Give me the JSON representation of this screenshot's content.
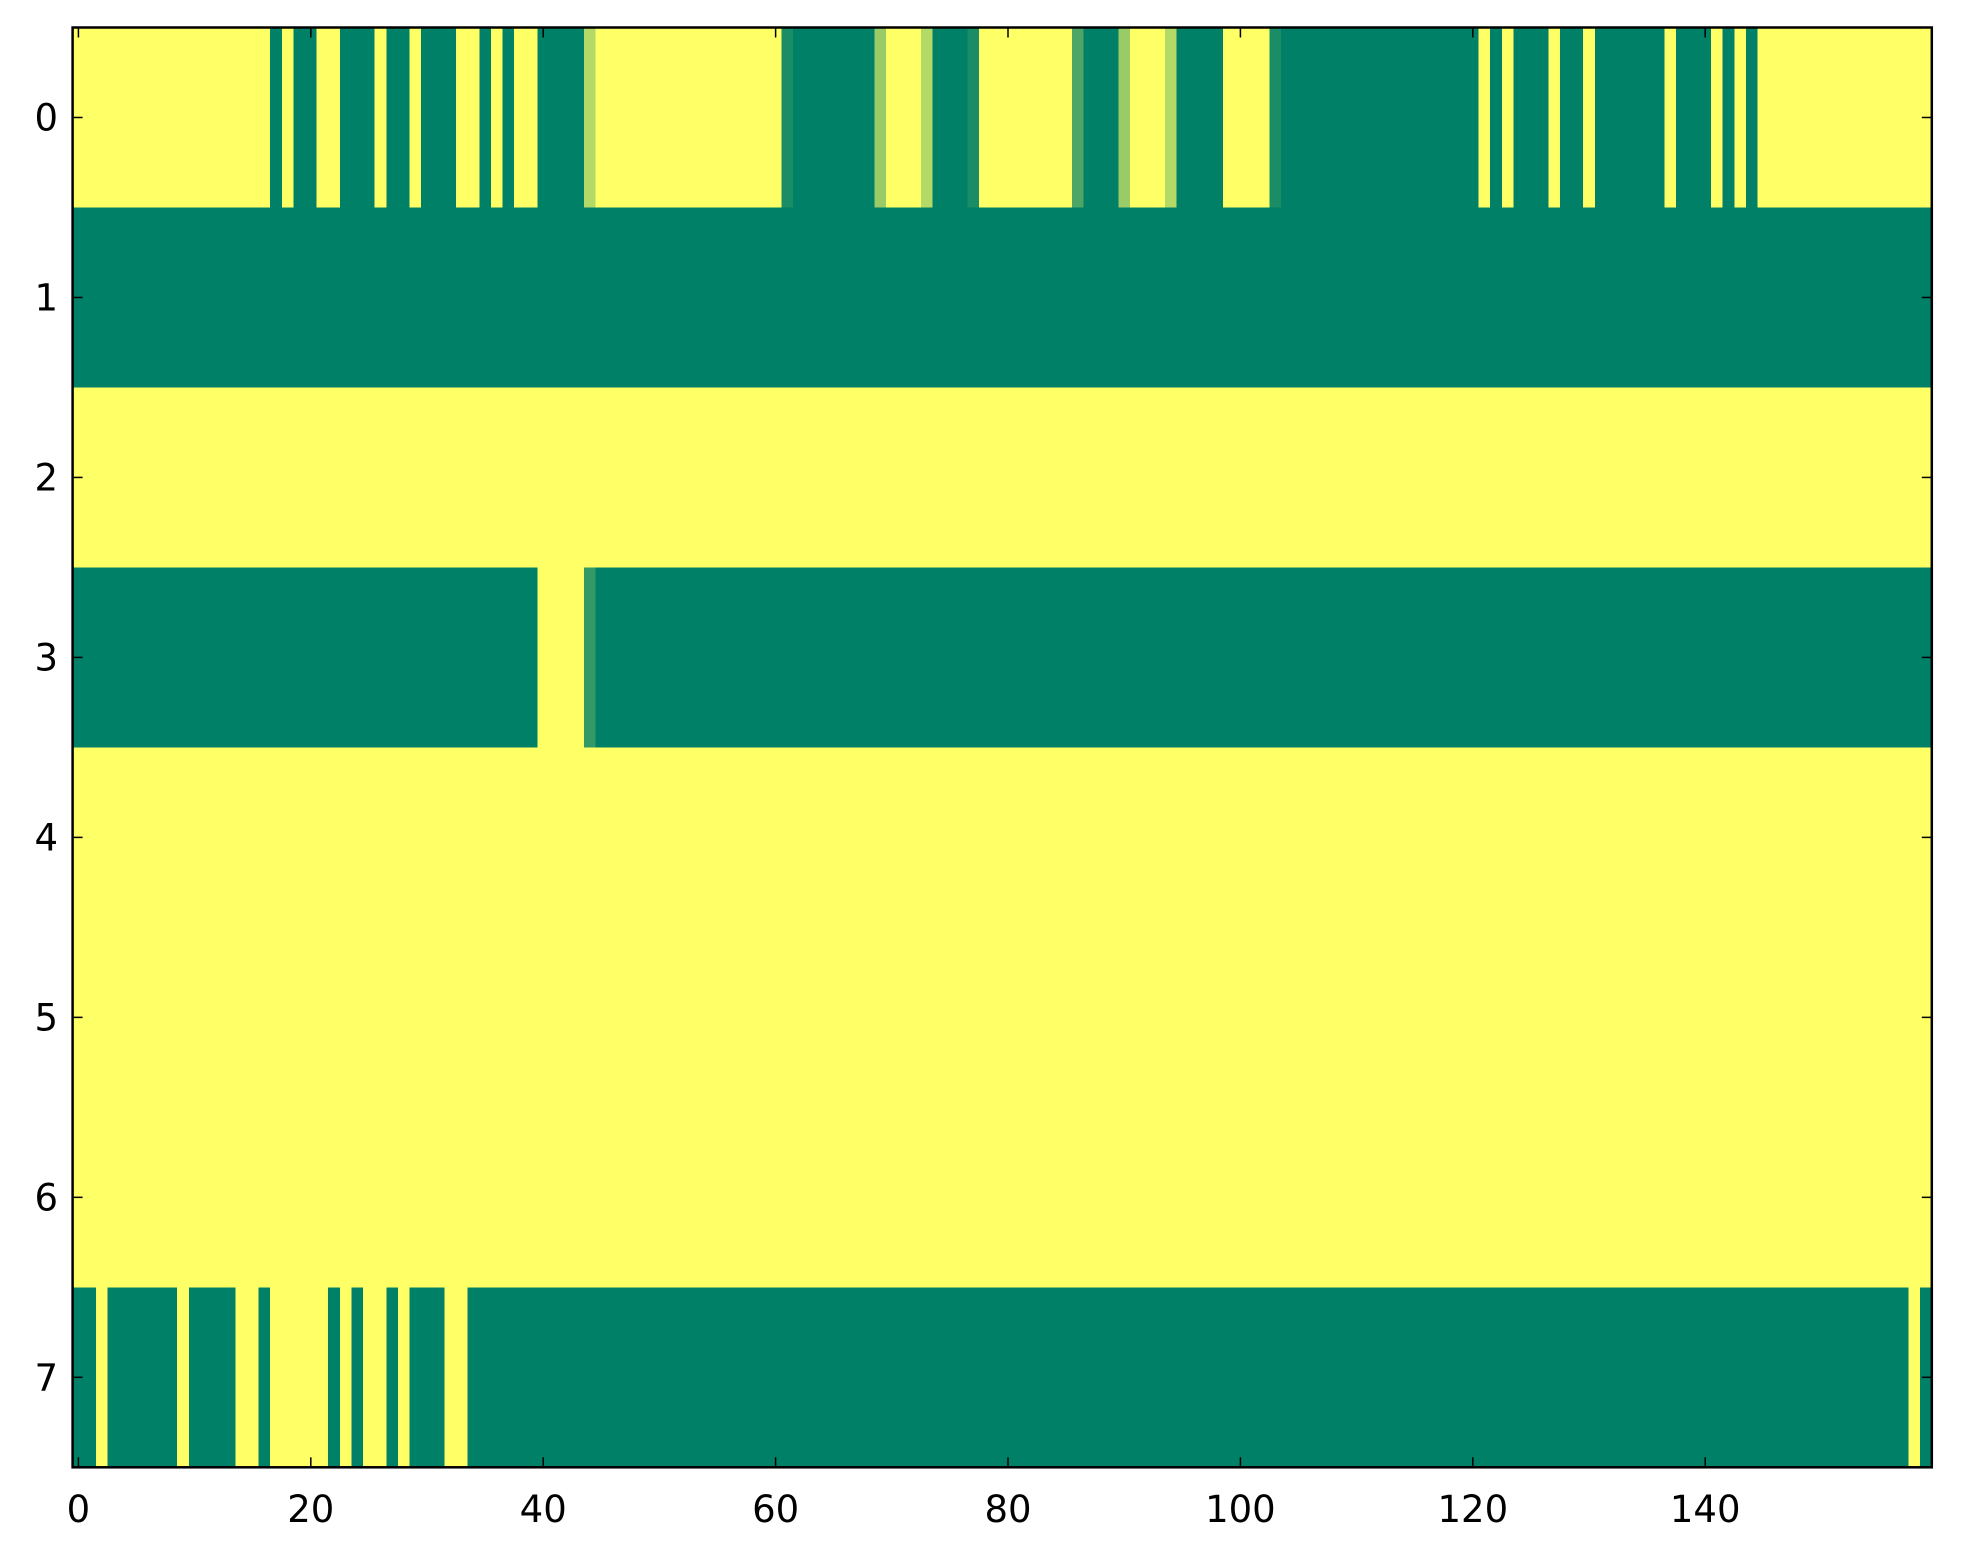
{
  "chart_data": {
    "type": "heatmap",
    "colormap": [
      "#008066",
      "#ffff66"
    ],
    "xlim": [
      -0.5,
      159.5
    ],
    "ylim": [
      7.5,
      -0.5
    ],
    "xticks": [
      0,
      20,
      40,
      60,
      80,
      100,
      120,
      140
    ],
    "yticks": [
      0,
      1,
      2,
      3,
      4,
      5,
      6,
      7
    ],
    "z": [
      [
        1,
        1,
        1,
        1,
        1,
        1,
        1,
        1,
        1,
        1,
        1,
        1,
        1,
        1,
        1,
        1,
        1,
        0,
        1,
        0,
        0,
        1,
        1,
        0,
        0,
        0,
        1,
        0,
        0,
        1,
        0,
        0,
        0,
        1,
        1,
        0,
        1,
        0,
        1,
        1,
        0,
        0,
        0,
        0,
        0.7,
        1,
        1,
        1,
        1,
        1,
        1,
        1,
        1,
        1,
        1,
        1,
        1,
        1,
        1,
        1,
        1,
        0.1,
        0,
        0,
        0,
        0,
        0,
        0,
        0,
        0.6,
        1,
        1,
        1,
        0.7,
        0,
        0,
        0,
        0.1,
        1,
        1,
        1,
        1,
        1,
        1,
        1,
        1,
        0.3,
        0,
        0,
        0,
        0.6,
        1,
        1,
        1,
        0.7,
        0,
        0,
        0,
        0,
        1,
        1,
        1,
        1,
        0.1,
        0,
        0,
        0,
        0,
        0,
        0,
        0,
        0,
        0,
        0,
        0,
        0,
        0,
        0,
        0,
        0,
        0,
        1,
        0,
        1,
        0,
        0,
        0,
        1,
        0,
        0,
        1,
        0,
        0,
        0,
        0,
        0,
        0,
        1,
        0,
        0,
        0,
        1,
        0,
        1,
        0,
        1,
        1,
        1,
        1,
        1,
        1,
        1,
        1,
        1,
        1,
        1,
        1,
        1,
        1,
        1
      ],
      [
        0,
        0,
        0,
        0,
        0,
        0,
        0,
        0,
        0,
        0,
        0,
        0,
        0,
        0,
        0,
        0,
        0,
        0,
        0,
        0,
        0,
        0,
        0,
        0,
        0,
        0,
        0,
        0,
        0,
        0,
        0,
        0,
        0,
        0,
        0,
        0,
        0,
        0,
        0,
        0,
        0,
        0,
        0,
        0,
        0,
        0,
        0,
        0,
        0,
        0,
        0,
        0,
        0,
        0,
        0,
        0,
        0,
        0,
        0,
        0,
        0,
        0,
        0,
        0,
        0,
        0,
        0,
        0,
        0,
        0,
        0,
        0,
        0,
        0,
        0,
        0,
        0,
        0,
        0,
        0,
        0,
        0,
        0,
        0,
        0,
        0,
        0,
        0,
        0,
        0,
        0,
        0,
        0,
        0,
        0,
        0,
        0,
        0,
        0,
        0,
        0,
        0,
        0,
        0,
        0,
        0,
        0,
        0,
        0,
        0,
        0,
        0,
        0,
        0,
        0,
        0,
        0,
        0,
        0,
        0,
        0,
        0,
        0,
        0,
        0,
        0,
        0,
        0,
        0,
        0,
        0,
        0,
        0,
        0,
        0,
        0,
        0,
        0,
        0,
        0,
        0,
        0,
        0,
        0,
        0,
        0,
        0,
        0,
        0,
        0,
        0,
        0,
        0,
        0,
        0,
        0,
        0,
        0,
        0,
        0
      ],
      [
        1,
        1,
        1,
        1,
        1,
        1,
        1,
        1,
        1,
        1,
        1,
        1,
        1,
        1,
        1,
        1,
        1,
        1,
        1,
        1,
        1,
        1,
        1,
        1,
        1,
        1,
        1,
        1,
        1,
        1,
        1,
        1,
        1,
        1,
        1,
        1,
        1,
        1,
        1,
        1,
        1,
        1,
        1,
        1,
        1,
        1,
        1,
        1,
        1,
        1,
        1,
        1,
        1,
        1,
        1,
        1,
        1,
        1,
        1,
        1,
        1,
        1,
        1,
        1,
        1,
        1,
        1,
        1,
        1,
        1,
        1,
        1,
        1,
        1,
        1,
        1,
        1,
        1,
        1,
        1,
        1,
        1,
        1,
        1,
        1,
        1,
        1,
        1,
        1,
        1,
        1,
        1,
        1,
        1,
        1,
        1,
        1,
        1,
        1,
        1,
        1,
        1,
        1,
        1,
        1,
        1,
        1,
        1,
        1,
        1,
        1,
        1,
        1,
        1,
        1,
        1,
        1,
        1,
        1,
        1,
        1,
        1,
        1,
        1,
        1,
        1,
        1,
        1,
        1,
        1,
        1,
        1,
        1,
        1,
        1,
        1,
        1,
        1,
        1,
        1,
        1,
        1,
        1,
        1,
        1,
        1,
        1,
        1,
        1,
        1,
        1,
        1,
        1,
        1,
        1,
        1,
        1,
        1,
        1,
        1
      ],
      [
        0,
        0,
        0,
        0,
        0,
        0,
        0,
        0,
        0,
        0,
        0,
        0,
        0,
        0,
        0,
        0,
        0,
        0,
        0,
        0,
        0,
        0,
        0,
        0,
        0,
        0,
        0,
        0,
        0,
        0,
        0,
        0,
        0,
        0,
        0,
        0,
        0,
        0,
        0,
        0,
        1,
        1,
        1,
        1,
        0.2,
        0,
        0,
        0,
        0,
        0,
        0,
        0,
        0,
        0,
        0,
        0,
        0,
        0,
        0,
        0,
        0,
        0,
        0,
        0,
        0,
        0,
        0,
        0,
        0,
        0,
        0,
        0,
        0,
        0,
        0,
        0,
        0,
        0,
        0,
        0,
        0,
        0,
        0,
        0,
        0,
        0,
        0,
        0,
        0,
        0,
        0,
        0,
        0,
        0,
        0,
        0,
        0,
        0,
        0,
        0,
        0,
        0,
        0,
        0,
        0,
        0,
        0,
        0,
        0,
        0,
        0,
        0,
        0,
        0,
        0,
        0,
        0,
        0,
        0,
        0,
        0,
        0,
        0,
        0,
        0,
        0,
        0,
        0,
        0,
        0,
        0,
        0,
        0,
        0,
        0,
        0,
        0,
        0,
        0,
        0,
        0,
        0,
        0,
        0,
        0,
        0,
        0,
        0,
        0,
        0,
        0,
        0,
        0,
        0,
        0,
        0,
        0,
        0,
        0,
        0
      ],
      [
        1,
        1,
        1,
        1,
        1,
        1,
        1,
        1,
        1,
        1,
        1,
        1,
        1,
        1,
        1,
        1,
        1,
        1,
        1,
        1,
        1,
        1,
        1,
        1,
        1,
        1,
        1,
        1,
        1,
        1,
        1,
        1,
        1,
        1,
        1,
        1,
        1,
        1,
        1,
        1,
        1,
        1,
        1,
        1,
        1,
        1,
        1,
        1,
        1,
        1,
        1,
        1,
        1,
        1,
        1,
        1,
        1,
        1,
        1,
        1,
        1,
        1,
        1,
        1,
        1,
        1,
        1,
        1,
        1,
        1,
        1,
        1,
        1,
        1,
        1,
        1,
        1,
        1,
        1,
        1,
        1,
        1,
        1,
        1,
        1,
        1,
        1,
        1,
        1,
        1,
        1,
        1,
        1,
        1,
        1,
        1,
        1,
        1,
        1,
        1,
        1,
        1,
        1,
        1,
        1,
        1,
        1,
        1,
        1,
        1,
        1,
        1,
        1,
        1,
        1,
        1,
        1,
        1,
        1,
        1,
        1,
        1,
        1,
        1,
        1,
        1,
        1,
        1,
        1,
        1,
        1,
        1,
        1,
        1,
        1,
        1,
        1,
        1,
        1,
        1,
        1,
        1,
        1,
        1,
        1,
        1,
        1,
        1,
        1,
        1,
        1,
        1,
        1,
        1,
        1,
        1,
        1,
        1,
        1,
        1
      ],
      [
        1,
        1,
        1,
        1,
        1,
        1,
        1,
        1,
        1,
        1,
        1,
        1,
        1,
        1,
        1,
        1,
        1,
        1,
        1,
        1,
        1,
        1,
        1,
        1,
        1,
        1,
        1,
        1,
        1,
        1,
        1,
        1,
        1,
        1,
        1,
        1,
        1,
        1,
        1,
        1,
        1,
        1,
        1,
        1,
        1,
        1,
        1,
        1,
        1,
        1,
        1,
        1,
        1,
        1,
        1,
        1,
        1,
        1,
        1,
        1,
        1,
        1,
        1,
        1,
        1,
        1,
        1,
        1,
        1,
        1,
        1,
        1,
        1,
        1,
        1,
        1,
        1,
        1,
        1,
        1,
        1,
        1,
        1,
        1,
        1,
        1,
        1,
        1,
        1,
        1,
        1,
        1,
        1,
        1,
        1,
        1,
        1,
        1,
        1,
        1,
        1,
        1,
        1,
        1,
        1,
        1,
        1,
        1,
        1,
        1,
        1,
        1,
        1,
        1,
        1,
        1,
        1,
        1,
        1,
        1,
        1,
        1,
        1,
        1,
        1,
        1,
        1,
        1,
        1,
        1,
        1,
        1,
        1,
        1,
        1,
        1,
        1,
        1,
        1,
        1,
        1,
        1,
        1,
        1,
        1,
        1,
        1,
        1,
        1,
        1,
        1,
        1,
        1,
        1,
        1,
        1,
        1,
        1,
        1,
        1
      ],
      [
        1,
        1,
        1,
        1,
        1,
        1,
        1,
        1,
        1,
        1,
        1,
        1,
        1,
        1,
        1,
        1,
        1,
        1,
        1,
        1,
        1,
        1,
        1,
        1,
        1,
        1,
        1,
        1,
        1,
        1,
        1,
        1,
        1,
        1,
        1,
        1,
        1,
        1,
        1,
        1,
        1,
        1,
        1,
        1,
        1,
        1,
        1,
        1,
        1,
        1,
        1,
        1,
        1,
        1,
        1,
        1,
        1,
        1,
        1,
        1,
        1,
        1,
        1,
        1,
        1,
        1,
        1,
        1,
        1,
        1,
        1,
        1,
        1,
        1,
        1,
        1,
        1,
        1,
        1,
        1,
        1,
        1,
        1,
        1,
        1,
        1,
        1,
        1,
        1,
        1,
        1,
        1,
        1,
        1,
        1,
        1,
        1,
        1,
        1,
        1,
        1,
        1,
        1,
        1,
        1,
        1,
        1,
        1,
        1,
        1,
        1,
        1,
        1,
        1,
        1,
        1,
        1,
        1,
        1,
        1,
        1,
        1,
        1,
        1,
        1,
        1,
        1,
        1,
        1,
        1,
        1,
        1,
        1,
        1,
        1,
        1,
        1,
        1,
        1,
        1,
        1,
        1,
        1,
        1,
        1,
        1,
        1,
        1,
        1,
        1,
        1,
        1,
        1,
        1,
        1,
        1,
        1,
        1,
        1,
        1
      ],
      [
        0,
        0,
        1,
        0,
        0,
        0,
        0,
        0,
        0,
        1,
        0,
        0,
        0,
        0,
        1,
        1,
        0,
        1,
        1,
        1,
        1,
        1,
        0,
        1,
        0,
        1,
        1,
        0,
        1,
        0,
        0,
        0,
        1,
        1,
        0,
        0,
        0,
        0,
        0,
        0,
        0,
        0,
        0,
        0,
        0,
        0,
        0,
        0,
        0,
        0,
        0,
        0,
        0,
        0,
        0,
        0,
        0,
        0,
        0,
        0,
        0,
        0,
        0,
        0,
        0,
        0,
        0,
        0,
        0,
        0,
        0,
        0,
        0,
        0,
        0,
        0,
        0,
        0,
        0,
        0,
        0,
        0,
        0,
        0,
        0,
        0,
        0,
        0,
        0,
        0,
        0,
        0,
        0,
        0,
        0,
        0,
        0,
        0,
        0,
        0,
        0,
        0,
        0,
        0,
        0,
        0,
        0,
        0,
        0,
        0,
        0,
        0,
        0,
        0,
        0,
        0,
        0,
        0,
        0,
        0,
        0,
        0,
        0,
        0,
        0,
        0,
        0,
        0,
        0,
        0,
        0,
        0,
        0,
        0,
        0,
        0,
        0,
        0,
        0,
        0,
        0,
        0,
        0,
        0,
        0,
        0,
        0,
        0,
        0,
        0,
        0,
        0,
        0,
        0,
        0,
        0,
        0,
        0,
        1,
        0
      ]
    ]
  }
}
